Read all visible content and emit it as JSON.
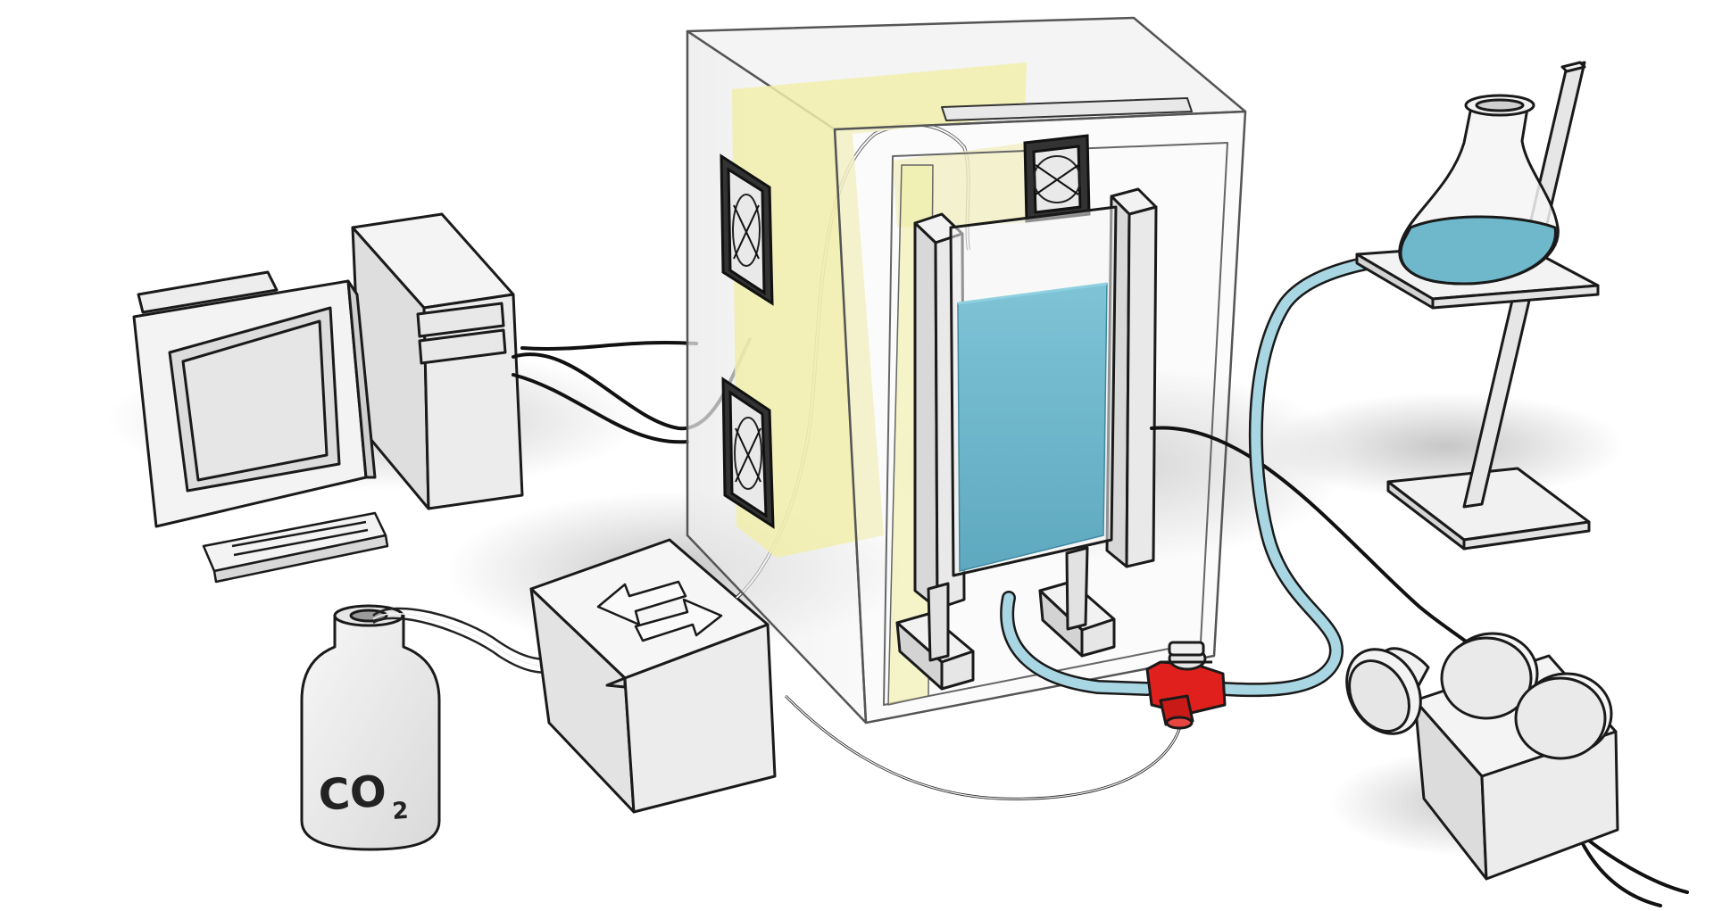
{
  "gas_cylinder": {
    "label_main": "CO",
    "label_sub": "2"
  },
  "colors": {
    "enclosure": "#f2f2f2",
    "back_panel": "#f1eeaa",
    "water": "#6fb8cc",
    "valve": "#e0201c",
    "cable": "#111111",
    "tube": "#a9d6e3",
    "outline": "#1a1a1a"
  },
  "icons": {
    "fan": "fan-icon",
    "arrows": "exchange-arrows-icon"
  }
}
